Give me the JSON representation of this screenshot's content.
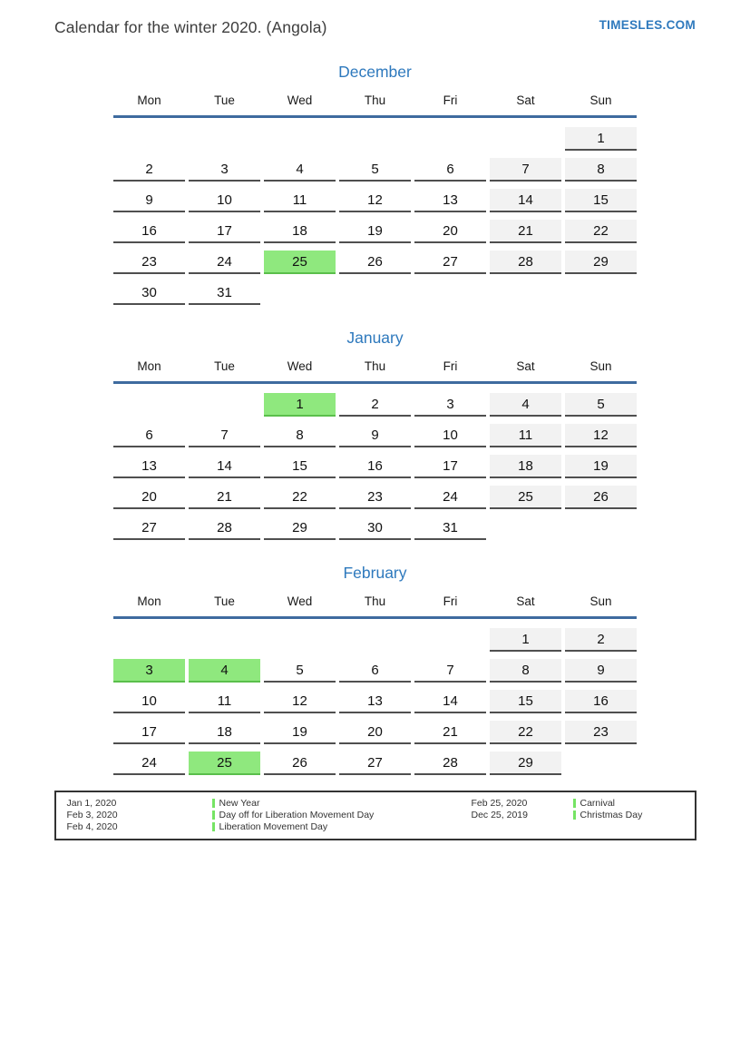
{
  "header": {
    "title": "Calendar for the winter 2020. (Angola)",
    "brand": "TIMESLES.COM"
  },
  "weekdays": [
    "Mon",
    "Tue",
    "Wed",
    "Thu",
    "Fri",
    "Sat",
    "Sun"
  ],
  "months": [
    {
      "name": "December",
      "weeks": [
        [
          null,
          null,
          null,
          null,
          null,
          null,
          {
            "d": 1,
            "t": "we"
          }
        ],
        [
          {
            "d": 2,
            "t": "d"
          },
          {
            "d": 3,
            "t": "d"
          },
          {
            "d": 4,
            "t": "d"
          },
          {
            "d": 5,
            "t": "d"
          },
          {
            "d": 6,
            "t": "d"
          },
          {
            "d": 7,
            "t": "we"
          },
          {
            "d": 8,
            "t": "we"
          }
        ],
        [
          {
            "d": 9,
            "t": "d"
          },
          {
            "d": 10,
            "t": "d"
          },
          {
            "d": 11,
            "t": "d"
          },
          {
            "d": 12,
            "t": "d"
          },
          {
            "d": 13,
            "t": "d"
          },
          {
            "d": 14,
            "t": "we"
          },
          {
            "d": 15,
            "t": "we"
          }
        ],
        [
          {
            "d": 16,
            "t": "d"
          },
          {
            "d": 17,
            "t": "d"
          },
          {
            "d": 18,
            "t": "d"
          },
          {
            "d": 19,
            "t": "d"
          },
          {
            "d": 20,
            "t": "d"
          },
          {
            "d": 21,
            "t": "we"
          },
          {
            "d": 22,
            "t": "we"
          }
        ],
        [
          {
            "d": 23,
            "t": "d"
          },
          {
            "d": 24,
            "t": "d"
          },
          {
            "d": 25,
            "t": "hol"
          },
          {
            "d": 26,
            "t": "d"
          },
          {
            "d": 27,
            "t": "d"
          },
          {
            "d": 28,
            "t": "we"
          },
          {
            "d": 29,
            "t": "we"
          }
        ],
        [
          {
            "d": 30,
            "t": "d"
          },
          {
            "d": 31,
            "t": "d"
          },
          null,
          null,
          null,
          null,
          null
        ]
      ]
    },
    {
      "name": "January",
      "weeks": [
        [
          null,
          null,
          {
            "d": 1,
            "t": "hol"
          },
          {
            "d": 2,
            "t": "d"
          },
          {
            "d": 3,
            "t": "d"
          },
          {
            "d": 4,
            "t": "we"
          },
          {
            "d": 5,
            "t": "we"
          }
        ],
        [
          {
            "d": 6,
            "t": "d"
          },
          {
            "d": 7,
            "t": "d"
          },
          {
            "d": 8,
            "t": "d"
          },
          {
            "d": 9,
            "t": "d"
          },
          {
            "d": 10,
            "t": "d"
          },
          {
            "d": 11,
            "t": "we"
          },
          {
            "d": 12,
            "t": "we"
          }
        ],
        [
          {
            "d": 13,
            "t": "d"
          },
          {
            "d": 14,
            "t": "d"
          },
          {
            "d": 15,
            "t": "d"
          },
          {
            "d": 16,
            "t": "d"
          },
          {
            "d": 17,
            "t": "d"
          },
          {
            "d": 18,
            "t": "we"
          },
          {
            "d": 19,
            "t": "we"
          }
        ],
        [
          {
            "d": 20,
            "t": "d"
          },
          {
            "d": 21,
            "t": "d"
          },
          {
            "d": 22,
            "t": "d"
          },
          {
            "d": 23,
            "t": "d"
          },
          {
            "d": 24,
            "t": "d"
          },
          {
            "d": 25,
            "t": "we"
          },
          {
            "d": 26,
            "t": "we"
          }
        ],
        [
          {
            "d": 27,
            "t": "d"
          },
          {
            "d": 28,
            "t": "d"
          },
          {
            "d": 29,
            "t": "d"
          },
          {
            "d": 30,
            "t": "d"
          },
          {
            "d": 31,
            "t": "d"
          },
          null,
          null
        ]
      ]
    },
    {
      "name": "February",
      "weeks": [
        [
          null,
          null,
          null,
          null,
          null,
          {
            "d": 1,
            "t": "we"
          },
          {
            "d": 2,
            "t": "we"
          }
        ],
        [
          {
            "d": 3,
            "t": "hol"
          },
          {
            "d": 4,
            "t": "hol"
          },
          {
            "d": 5,
            "t": "d"
          },
          {
            "d": 6,
            "t": "d"
          },
          {
            "d": 7,
            "t": "d"
          },
          {
            "d": 8,
            "t": "we"
          },
          {
            "d": 9,
            "t": "we"
          }
        ],
        [
          {
            "d": 10,
            "t": "d"
          },
          {
            "d": 11,
            "t": "d"
          },
          {
            "d": 12,
            "t": "d"
          },
          {
            "d": 13,
            "t": "d"
          },
          {
            "d": 14,
            "t": "d"
          },
          {
            "d": 15,
            "t": "we"
          },
          {
            "d": 16,
            "t": "we"
          }
        ],
        [
          {
            "d": 17,
            "t": "d"
          },
          {
            "d": 18,
            "t": "d"
          },
          {
            "d": 19,
            "t": "d"
          },
          {
            "d": 20,
            "t": "d"
          },
          {
            "d": 21,
            "t": "d"
          },
          {
            "d": 22,
            "t": "we"
          },
          {
            "d": 23,
            "t": "we"
          }
        ],
        [
          {
            "d": 24,
            "t": "d"
          },
          {
            "d": 25,
            "t": "hol"
          },
          {
            "d": 26,
            "t": "d"
          },
          {
            "d": 27,
            "t": "d"
          },
          {
            "d": 28,
            "t": "d"
          },
          {
            "d": 29,
            "t": "we"
          },
          null
        ]
      ]
    }
  ],
  "legend": {
    "groups": [
      {
        "items": [
          {
            "date": "Jan 1, 2020",
            "label": "New Year"
          },
          {
            "date": "Feb 3, 2020",
            "label": "Day off for Liberation Movement Day"
          },
          {
            "date": "Feb 4, 2020",
            "label": "Liberation Movement Day"
          }
        ]
      },
      {
        "items": [
          {
            "date": "Feb 25, 2020",
            "label": "Carnival"
          },
          {
            "date": "Dec 25, 2019",
            "label": "Christmas Day"
          }
        ]
      }
    ]
  },
  "colors": {
    "accent_blue": "#2e79bd",
    "header_line": "#3e6b9f",
    "holiday_green": "#8fe87e",
    "holiday_border": "#5abf4b",
    "weekend_gray": "#f2f2f2",
    "cell_border": "#4f4f4f",
    "legend_bar_green": "#76e464"
  }
}
